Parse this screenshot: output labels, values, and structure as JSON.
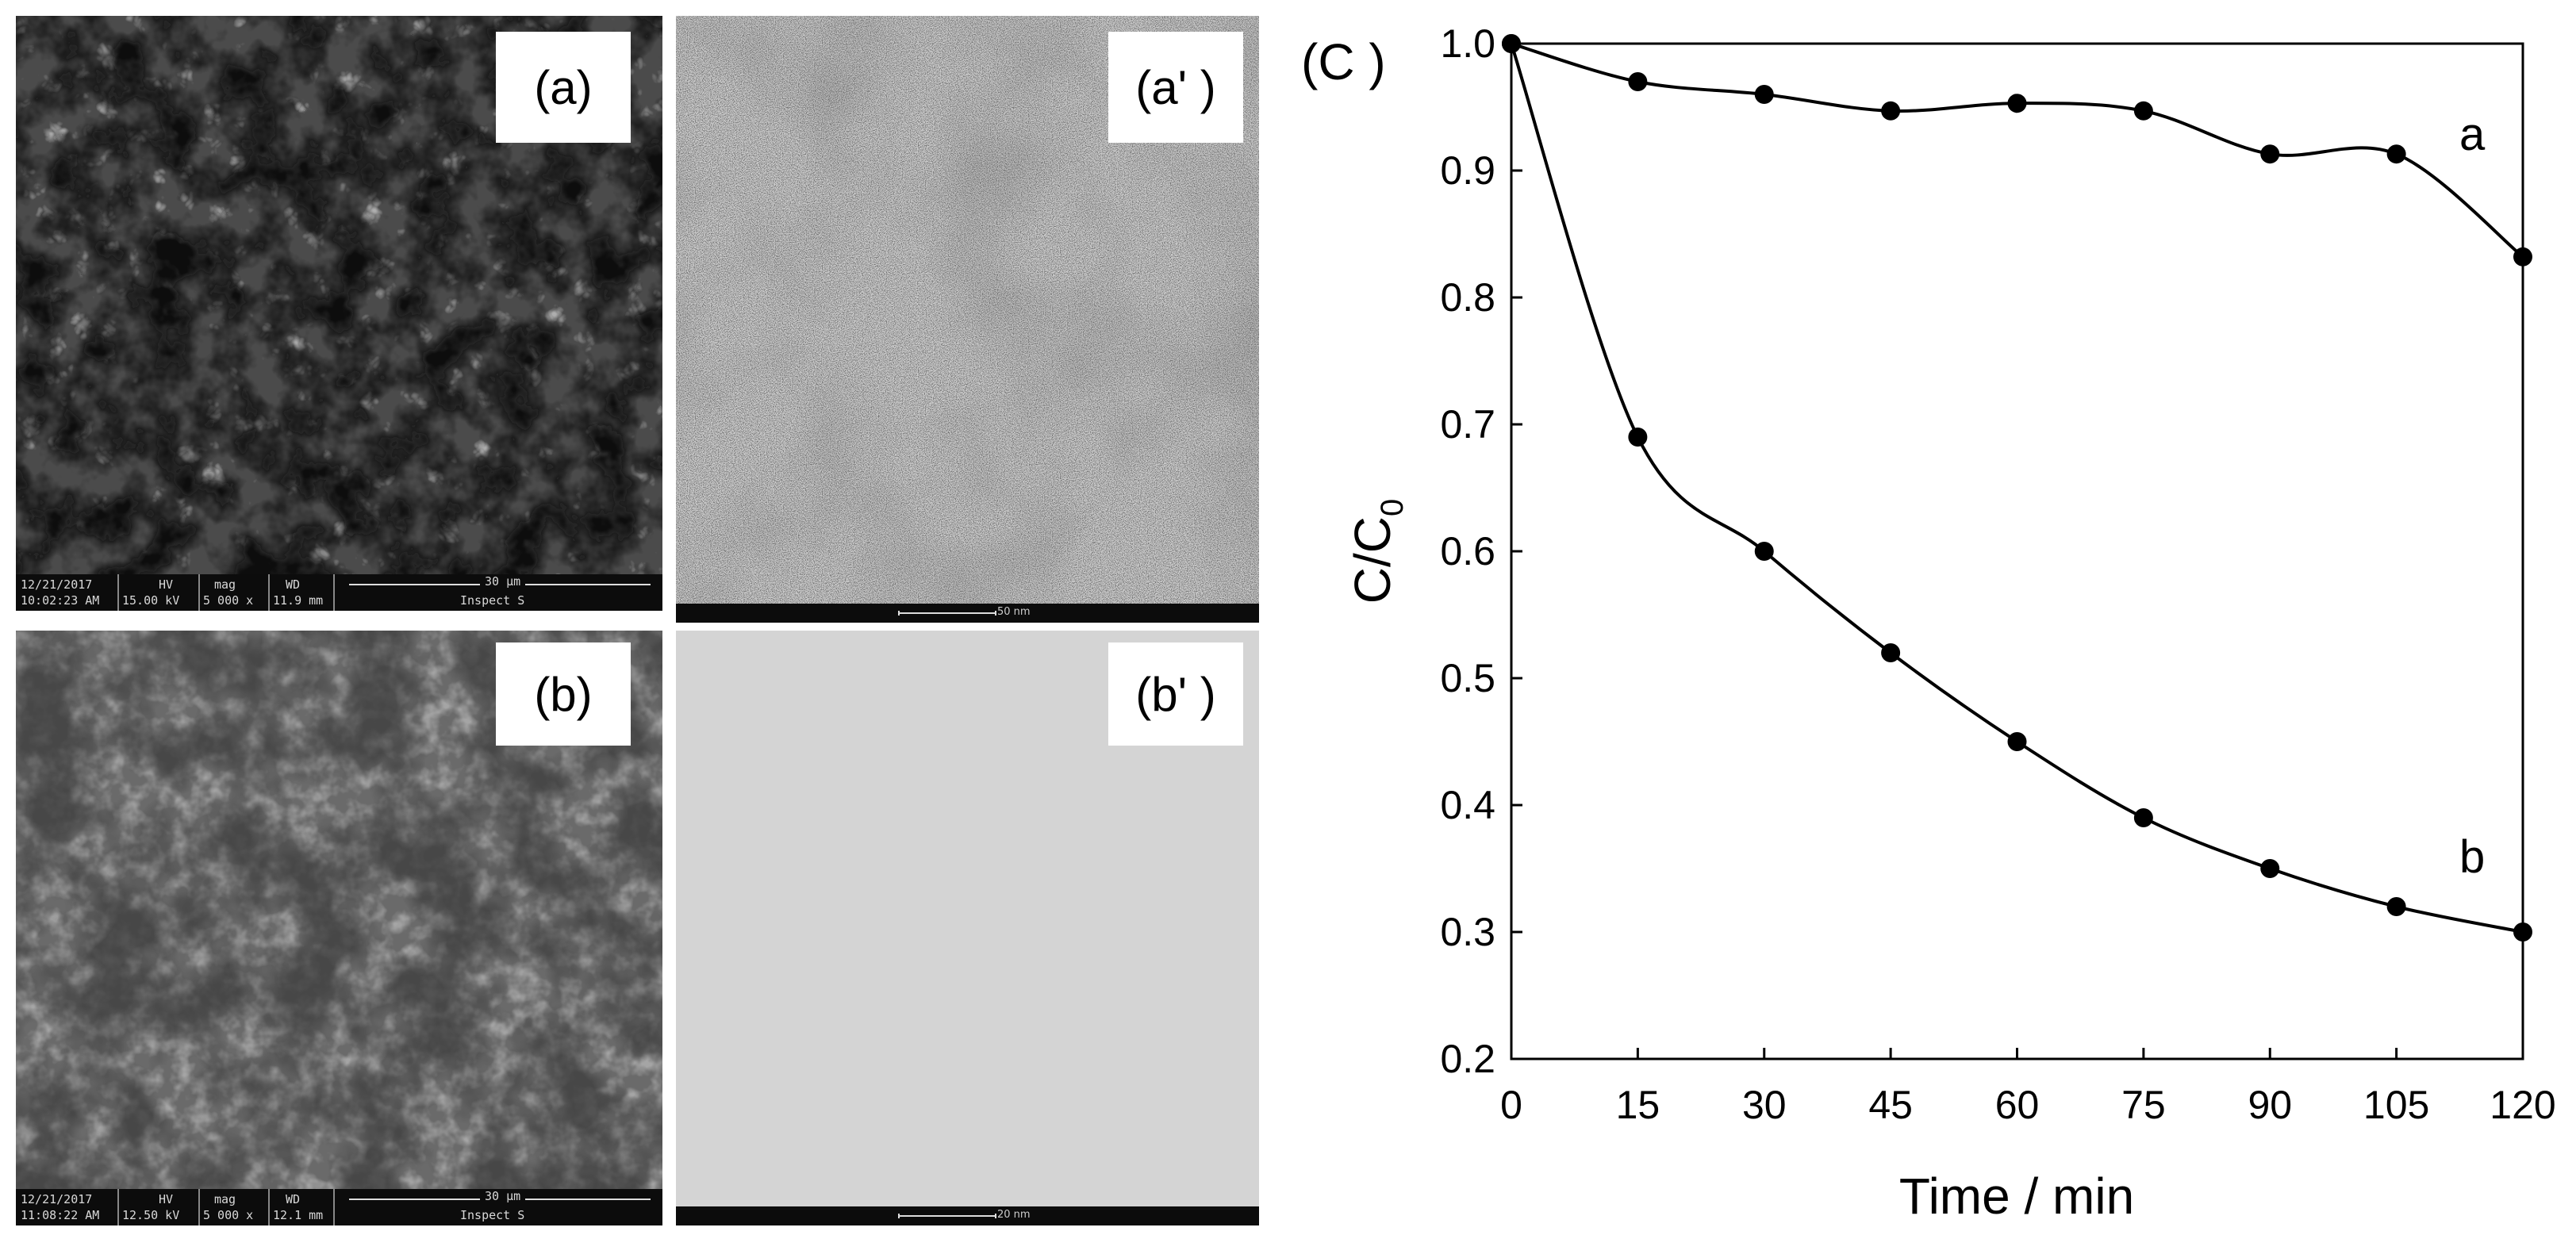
{
  "panels": {
    "a": {
      "label": "(a)",
      "bar": {
        "date": "12/21/2017",
        "time": "10:02:23 AM",
        "hv_label": "HV",
        "hv": "15.00 kV",
        "mag_label": "mag",
        "mag": "5 000 x",
        "wd_label": "WD",
        "wd": "11.9 mm",
        "scale": "30 μm",
        "detector": "Inspect S"
      }
    },
    "a2": {
      "label": "(a' )",
      "scale": "50 nm"
    },
    "b": {
      "label": "(b)",
      "bar": {
        "date": "12/21/2017",
        "time": "11:08:22 AM",
        "hv_label": "HV",
        "hv": "12.50 kV",
        "mag_label": "mag",
        "mag": "5 000 x",
        "wd_label": "WD",
        "wd": "12.1 mm",
        "scale": "30 μm",
        "detector": "Inspect S"
      }
    },
    "b2": {
      "label": "(b' )",
      "scale": "20 nm"
    }
  },
  "chart_panel_label": "(C )",
  "chart_data": {
    "type": "line",
    "x": [
      0,
      15,
      30,
      45,
      60,
      75,
      90,
      105,
      120
    ],
    "series": [
      {
        "name": "a",
        "values": [
          1.0,
          0.97,
          0.96,
          0.947,
          0.953,
          0.947,
          0.913,
          0.913,
          0.832
        ]
      },
      {
        "name": "b",
        "values": [
          1.0,
          0.69,
          0.6,
          0.52,
          0.45,
          0.39,
          0.35,
          0.32,
          0.3
        ]
      }
    ],
    "xlabel": "Time / min",
    "ylabel": "C/C",
    "ylabel_sub": "0",
    "xlim": [
      0,
      120
    ],
    "ylim": [
      0.2,
      1.0
    ],
    "xticks": [
      "0",
      "15",
      "30",
      "45",
      "60",
      "75",
      "90",
      "105",
      "120"
    ],
    "yticks": [
      "0.2",
      "0.3",
      "0.4",
      "0.5",
      "0.6",
      "0.7",
      "0.8",
      "0.9",
      "1.0"
    ],
    "grid": false,
    "legend": "inline labels at curve ends",
    "line_color": "#000000",
    "marker_color": "#000000"
  }
}
